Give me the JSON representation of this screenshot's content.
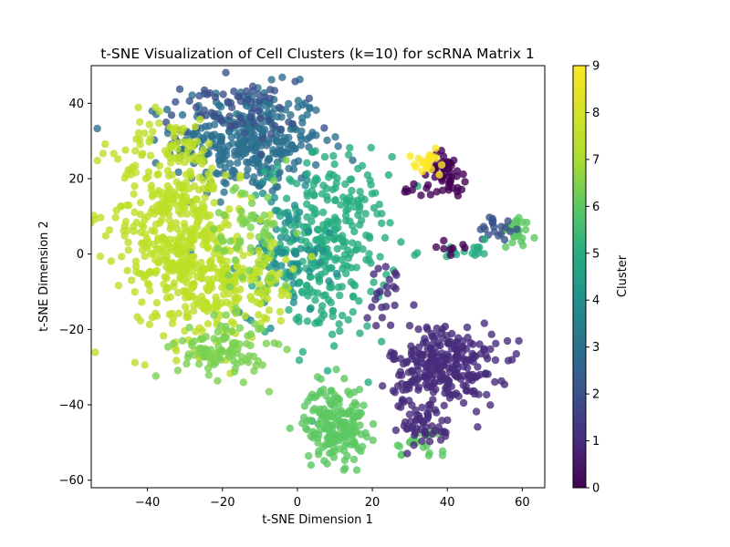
{
  "chart_data": {
    "type": "scatter",
    "title": "t-SNE Visualization of Cell Clusters (k=10) for scRNA Matrix 1",
    "xlabel": "t-SNE Dimension 1",
    "ylabel": "t-SNE Dimension 2",
    "xlim": [
      -55,
      66
    ],
    "ylim": [
      -62,
      50
    ],
    "xticks": [
      -40,
      -20,
      0,
      20,
      40,
      60
    ],
    "yticks": [
      -60,
      -40,
      -20,
      0,
      20,
      40
    ],
    "xtick_labels": [
      "−40",
      "−20",
      "0",
      "20",
      "40",
      "60"
    ],
    "ytick_labels": [
      "−60",
      "−40",
      "−20",
      "0",
      "20",
      "40"
    ],
    "colorbar": {
      "label": "Cluster",
      "min": 0,
      "max": 9,
      "ticks": [
        0,
        1,
        2,
        3,
        4,
        5,
        6,
        7,
        8,
        9
      ],
      "tick_labels": [
        "0",
        "1",
        "2",
        "3",
        "4",
        "5",
        "6",
        "7",
        "8",
        "9"
      ],
      "colormap": "viridis"
    },
    "point_alpha": 0.8,
    "grid": false,
    "clusters": [
      {
        "cluster": 3,
        "center": [
          -13,
          30
        ],
        "spread": [
          10,
          7
        ],
        "n": 340
      },
      {
        "cluster": 2,
        "center": [
          -18,
          38
        ],
        "spread": [
          9,
          4
        ],
        "n": 70
      },
      {
        "cluster": 5,
        "center": [
          8,
          2
        ],
        "spread": [
          8,
          12
        ],
        "n": 320
      },
      {
        "cluster": 4,
        "center": [
          -3,
          0
        ],
        "spread": [
          6,
          8
        ],
        "n": 70
      },
      {
        "cluster": 8,
        "center": [
          -33,
          12
        ],
        "spread": [
          8,
          13
        ],
        "n": 330
      },
      {
        "cluster": 8,
        "center": [
          -25,
          -5
        ],
        "spread": [
          9,
          10
        ],
        "n": 260
      },
      {
        "cluster": 8,
        "center": [
          -10,
          -8
        ],
        "spread": [
          5,
          6
        ],
        "n": 60
      },
      {
        "cluster": 7,
        "center": [
          -20,
          -25
        ],
        "spread": [
          6,
          4
        ],
        "n": 100
      },
      {
        "cluster": 7,
        "center": [
          -12,
          5
        ],
        "spread": [
          6,
          8
        ],
        "n": 50
      },
      {
        "cluster": 6,
        "center": [
          10,
          -45
        ],
        "spread": [
          4,
          5
        ],
        "n": 190
      },
      {
        "cluster": 6,
        "center": [
          33,
          -50
        ],
        "spread": [
          4,
          2
        ],
        "n": 20
      },
      {
        "cluster": 1,
        "center": [
          39,
          -30
        ],
        "spread": [
          7,
          6
        ],
        "n": 280
      },
      {
        "cluster": 1,
        "center": [
          32,
          -46
        ],
        "spread": [
          5,
          3
        ],
        "n": 40
      },
      {
        "cluster": 1,
        "center": [
          24,
          -10
        ],
        "spread": [
          2,
          4
        ],
        "n": 20
      },
      {
        "cluster": 0,
        "center": [
          40,
          22
        ],
        "spread": [
          2.5,
          2.5
        ],
        "n": 45
      },
      {
        "cluster": 9,
        "center": [
          35,
          25
        ],
        "spread": [
          3,
          2
        ],
        "n": 20
      },
      {
        "cluster": 0,
        "center": [
          34,
          17
        ],
        "spread": [
          3,
          1
        ],
        "n": 12
      },
      {
        "cluster": 6,
        "center": [
          58,
          6
        ],
        "spread": [
          2,
          2
        ],
        "n": 35
      },
      {
        "cluster": 2,
        "center": [
          54,
          7
        ],
        "spread": [
          3,
          2
        ],
        "n": 20
      },
      {
        "cluster": 5,
        "center": [
          46,
          1
        ],
        "spread": [
          3,
          1
        ],
        "n": 15
      },
      {
        "cluster": 0,
        "center": [
          40,
          2
        ],
        "spread": [
          2,
          1
        ],
        "n": 8
      }
    ]
  }
}
